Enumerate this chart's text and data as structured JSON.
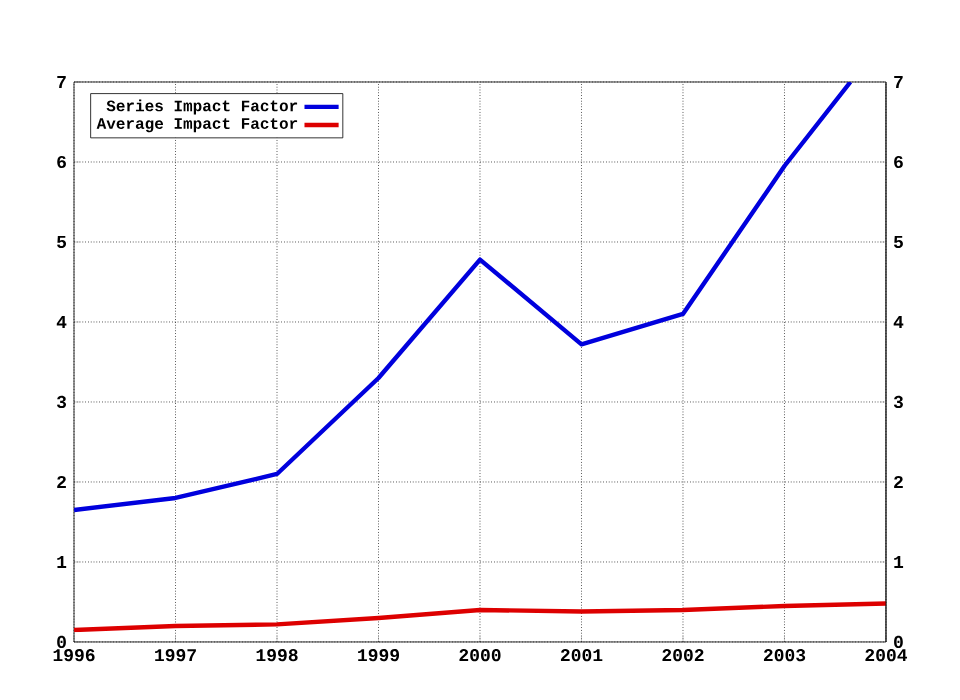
{
  "chart_data": {
    "type": "line",
    "x": [
      1996,
      1997,
      1998,
      1999,
      2000,
      2001,
      2002,
      2003,
      2004
    ],
    "series": [
      {
        "name": "Series Impact Factor",
        "color": "#0000dd",
        "x": [
          1996,
          1997,
          1998,
          1999,
          2000,
          2001,
          2002,
          2003,
          2003.65
        ],
        "values": [
          1.65,
          1.8,
          2.1,
          3.3,
          4.78,
          3.72,
          4.1,
          5.95,
          7
        ]
      },
      {
        "name": "Average Impact Factor",
        "color": "#dd0000",
        "values": [
          0.15,
          0.2,
          0.22,
          0.3,
          0.4,
          0.38,
          0.4,
          0.45,
          0.48
        ]
      }
    ],
    "xlim": [
      1996,
      2004
    ],
    "xticks": [
      1996,
      1997,
      1998,
      1999,
      2000,
      2001,
      2002,
      2003,
      2004
    ],
    "ylim": [
      0,
      7
    ],
    "yticks": [
      0,
      1,
      2,
      3,
      4,
      5,
      6,
      7
    ],
    "y2lim": [
      0,
      7
    ],
    "y2ticks": [
      0,
      1,
      2,
      3,
      4,
      5,
      6,
      7
    ],
    "grid": true,
    "legend": "top left",
    "marker": "none",
    "line_style": "solid"
  }
}
